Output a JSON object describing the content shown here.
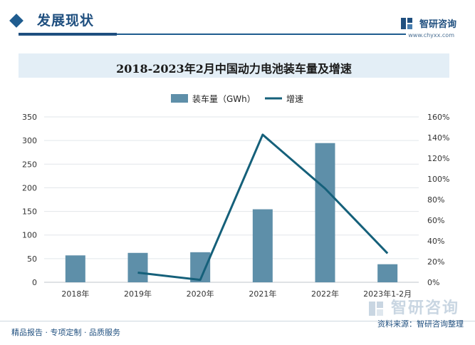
{
  "header": {
    "section_title": "发展现状",
    "logo_text": "智研咨询",
    "logo_url": "www.chyxx.com"
  },
  "chart_title": "2018-2023年2月中国动力电池装车量及增速",
  "footer": {
    "left": "精品报告 · 专项定制 · 品质服务",
    "source": "资料来源：智研咨询整理",
    "watermark": "智研咨询"
  },
  "colors": {
    "bar": "#5e8fa9",
    "line": "#15607a",
    "brand": "#1f4f7f"
  },
  "chart_data": {
    "type": "bar",
    "categories": [
      "2018年",
      "2019年",
      "2020年",
      "2021年",
      "2022年",
      "2023年1-2月"
    ],
    "series": [
      {
        "name": "装车量（GWh）",
        "type": "bar",
        "axis": "left",
        "values": [
          56.9,
          62.2,
          63.6,
          154.5,
          294.6,
          38.2
        ]
      },
      {
        "name": "增速",
        "type": "line",
        "axis": "right",
        "values": [
          null,
          9.3,
          2.3,
          142.8,
          90.7,
          28.0
        ]
      }
    ],
    "y_left": {
      "min": 0,
      "max": 350,
      "ticks": [
        0,
        50,
        100,
        150,
        200,
        250,
        300,
        350
      ]
    },
    "y_right": {
      "min": 0,
      "max": 160,
      "ticks": [
        "0%",
        "20%",
        "40%",
        "60%",
        "80%",
        "100%",
        "120%",
        "140%",
        "160%"
      ]
    },
    "legend_position": "top-center",
    "grid": true
  }
}
